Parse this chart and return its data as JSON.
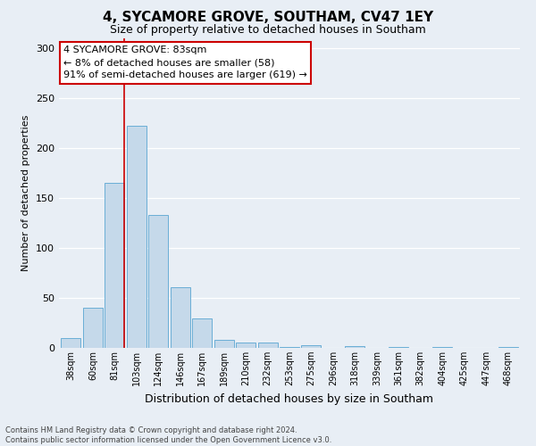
{
  "title": "4, SYCAMORE GROVE, SOUTHAM, CV47 1EY",
  "subtitle": "Size of property relative to detached houses in Southam",
  "xlabel": "Distribution of detached houses by size in Southam",
  "ylabel": "Number of detached properties",
  "bar_labels": [
    "38sqm",
    "60sqm",
    "81sqm",
    "103sqm",
    "124sqm",
    "146sqm",
    "167sqm",
    "189sqm",
    "210sqm",
    "232sqm",
    "253sqm",
    "275sqm",
    "296sqm",
    "318sqm",
    "339sqm",
    "361sqm",
    "382sqm",
    "404sqm",
    "425sqm",
    "447sqm",
    "468sqm"
  ],
  "bar_values": [
    10,
    40,
    165,
    222,
    133,
    61,
    29,
    8,
    5,
    5,
    1,
    3,
    0,
    2,
    0,
    1,
    0,
    1,
    0,
    0,
    1
  ],
  "bar_color": "#c5d9ea",
  "bar_edge_color": "#6aaed6",
  "vline_color": "#cc0000",
  "vline_x_index": 2,
  "vline_bar_width": 0.9,
  "ylim": [
    0,
    310
  ],
  "yticks": [
    0,
    50,
    100,
    150,
    200,
    250,
    300
  ],
  "annotation_title": "4 SYCAMORE GROVE: 83sqm",
  "annotation_line1": "← 8% of detached houses are smaller (58)",
  "annotation_line2": "91% of semi-detached houses are larger (619) →",
  "annotation_box_facecolor": "#ffffff",
  "annotation_box_edgecolor": "#cc0000",
  "footer_line1": "Contains HM Land Registry data © Crown copyright and database right 2024.",
  "footer_line2": "Contains public sector information licensed under the Open Government Licence v3.0.",
  "bg_color": "#e8eef5",
  "grid_color": "#ffffff",
  "title_fontsize": 11,
  "subtitle_fontsize": 9,
  "xlabel_fontsize": 9,
  "ylabel_fontsize": 8,
  "tick_fontsize": 7,
  "ytick_fontsize": 8,
  "annotation_fontsize": 8,
  "footer_fontsize": 6
}
